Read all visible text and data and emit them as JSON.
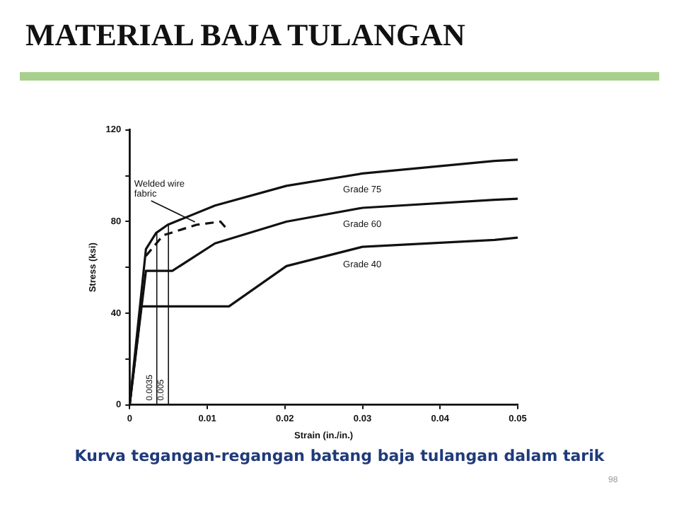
{
  "chart_data": {
    "type": "line",
    "title": "MATERIAL BAJA TULANGAN",
    "xlabel": "Strain (in./in.)",
    "ylabel": "Stress (ksi)",
    "xlim": [
      0,
      0.05
    ],
    "ylim": [
      0,
      120
    ],
    "xticks": [
      0,
      0.01,
      0.02,
      0.03,
      0.04,
      0.05
    ],
    "yticks": [
      0,
      {
        "value": 20,
        "label": null
      },
      40,
      {
        "value": 60,
        "label": null
      },
      80,
      {
        "value": 100,
        "label": null
      },
      120
    ],
    "grid": false,
    "legend": false,
    "marker": "none",
    "series": [
      {
        "name": "Grade 75",
        "color": "#111111",
        "x": [
          0,
          0.0021,
          0.0034,
          0.0049,
          0.011,
          0.0202,
          0.03,
          0.047,
          0.05
        ],
        "values": [
          0,
          68,
          75,
          78.6,
          87,
          95.6,
          101,
          106.5,
          107
        ]
      },
      {
        "name": "Grade 60",
        "color": "#111111",
        "x": [
          0,
          0.0021,
          0.0055,
          0.011,
          0.0202,
          0.03,
          0.047,
          0.05
        ],
        "values": [
          0,
          58.5,
          58.5,
          70.5,
          80,
          86,
          89.5,
          90
        ]
      },
      {
        "name": "Grade 40",
        "color": "#111111",
        "x": [
          0,
          0.0015,
          0.0128,
          0.0202,
          0.03,
          0.047,
          0.05
        ],
        "values": [
          0,
          43,
          43,
          60.6,
          69,
          72,
          73
        ]
      },
      {
        "color": "#111111",
        "line_style": "dashed",
        "x": [
          0.0021,
          0.0043,
          0.0086,
          0.0117,
          0.0126
        ],
        "values": [
          65,
          74,
          78.6,
          80,
          76.5
        ]
      }
    ],
    "ref_lines": [
      {
        "axis": "x",
        "value": 0.0035,
        "label": "0.0035"
      },
      {
        "axis": "x",
        "value": 0.005,
        "label": "0.005"
      }
    ],
    "annotations": [
      {
        "text": "Welded wire\nfabric",
        "x": 0.0086,
        "y": 78.6
      },
      "Kurva tegangan-regangan batang baja tulangan dalam tarik",
      "98"
    ]
  }
}
